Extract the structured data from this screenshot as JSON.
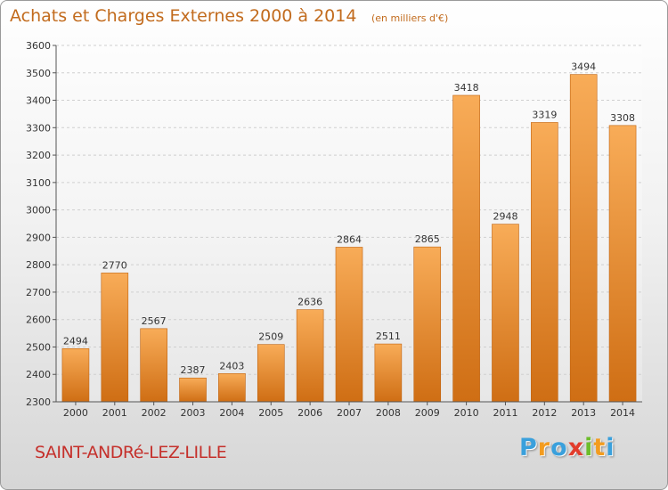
{
  "title": "Achats et Charges Externes 2000 à 2014",
  "unit_note": "(en milliers d'€)",
  "location": "SAINT-ANDRé-LEZ-LILLE",
  "brand": {
    "letters": [
      "P",
      "r",
      "o",
      "x",
      "i",
      "t",
      "i"
    ],
    "colors": [
      "#3aa0dc",
      "#f39c1f",
      "#3aa0dc",
      "#e23c2c",
      "#6cbd2a",
      "#f39c1f",
      "#3aa0dc"
    ]
  },
  "colors": {
    "bar_light": "#f8ac58",
    "bar_dark": "#cf6e14",
    "axis": "#555555",
    "grid": "#cfcfcf"
  },
  "chart_data": {
    "type": "bar",
    "categories": [
      "2000",
      "2001",
      "2002",
      "2003",
      "2004",
      "2005",
      "2006",
      "2007",
      "2008",
      "2009",
      "2010",
      "2011",
      "2012",
      "2013",
      "2014"
    ],
    "values": [
      2494,
      2770,
      2567,
      2387,
      2403,
      2509,
      2636,
      2864,
      2511,
      2865,
      3418,
      2948,
      3319,
      3494,
      3308
    ],
    "ylim": [
      2300,
      3600
    ],
    "yticks": [
      2300,
      2400,
      2500,
      2600,
      2700,
      2800,
      2900,
      3000,
      3100,
      3200,
      3300,
      3400,
      3500,
      3600
    ],
    "grid": true,
    "data_labels": true
  }
}
